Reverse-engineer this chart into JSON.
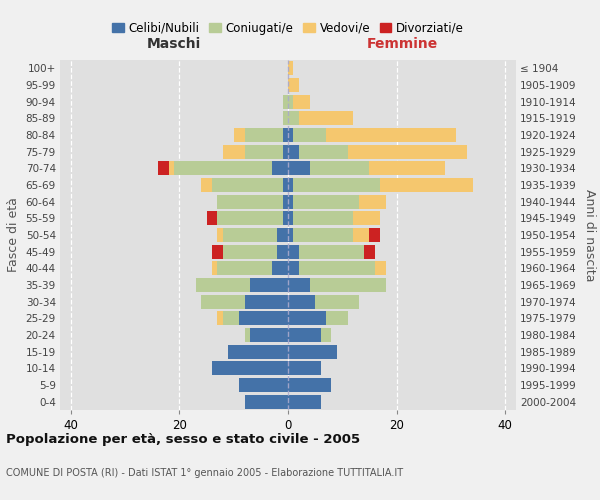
{
  "age_groups": [
    "0-4",
    "5-9",
    "10-14",
    "15-19",
    "20-24",
    "25-29",
    "30-34",
    "35-39",
    "40-44",
    "45-49",
    "50-54",
    "55-59",
    "60-64",
    "65-69",
    "70-74",
    "75-79",
    "80-84",
    "85-89",
    "90-94",
    "95-99",
    "100+"
  ],
  "birth_years": [
    "2000-2004",
    "1995-1999",
    "1990-1994",
    "1985-1989",
    "1980-1984",
    "1975-1979",
    "1970-1974",
    "1965-1969",
    "1960-1964",
    "1955-1959",
    "1950-1954",
    "1945-1949",
    "1940-1944",
    "1935-1939",
    "1930-1934",
    "1925-1929",
    "1920-1924",
    "1915-1919",
    "1910-1914",
    "1905-1909",
    "≤ 1904"
  ],
  "maschi": {
    "celibi": [
      8,
      9,
      14,
      11,
      7,
      9,
      8,
      7,
      3,
      2,
      2,
      1,
      1,
      1,
      3,
      1,
      1,
      0,
      0,
      0,
      0
    ],
    "coniugati": [
      0,
      0,
      0,
      0,
      1,
      3,
      8,
      10,
      10,
      10,
      10,
      12,
      12,
      13,
      18,
      7,
      7,
      1,
      1,
      0,
      0
    ],
    "vedovi": [
      0,
      0,
      0,
      0,
      0,
      1,
      0,
      0,
      1,
      0,
      1,
      0,
      0,
      2,
      1,
      4,
      2,
      0,
      0,
      0,
      0
    ],
    "divorziati": [
      0,
      0,
      0,
      0,
      0,
      0,
      0,
      0,
      0,
      2,
      0,
      2,
      0,
      0,
      2,
      0,
      0,
      0,
      0,
      0,
      0
    ]
  },
  "femmine": {
    "nubili": [
      6,
      8,
      6,
      9,
      6,
      7,
      5,
      4,
      2,
      2,
      1,
      1,
      1,
      1,
      4,
      2,
      1,
      0,
      0,
      0,
      0
    ],
    "coniugate": [
      0,
      0,
      0,
      0,
      2,
      4,
      8,
      14,
      14,
      12,
      11,
      11,
      12,
      16,
      11,
      9,
      6,
      2,
      1,
      0,
      0
    ],
    "vedove": [
      0,
      0,
      0,
      0,
      0,
      0,
      0,
      0,
      2,
      0,
      3,
      5,
      5,
      17,
      14,
      22,
      24,
      10,
      3,
      2,
      1
    ],
    "divorziate": [
      0,
      0,
      0,
      0,
      0,
      0,
      0,
      0,
      0,
      2,
      2,
      0,
      0,
      0,
      0,
      0,
      0,
      0,
      0,
      0,
      0
    ]
  },
  "colors": {
    "celibi": "#4472a8",
    "coniugati": "#b8cc96",
    "vedovi": "#f5c76e",
    "divorziati": "#cc2222"
  },
  "xlim": 42,
  "title": "Popolazione per età, sesso e stato civile - 2005",
  "subtitle": "COMUNE DI POSTA (RI) - Dati ISTAT 1° gennaio 2005 - Elaborazione TUTTITALIA.IT",
  "xlabel_left": "Maschi",
  "xlabel_right": "Femmine",
  "ylabel_left": "Fasce di età",
  "ylabel_right": "Anni di nascita",
  "legend_labels": [
    "Celibi/Nubili",
    "Coniugati/e",
    "Vedovi/e",
    "Divorziati/e"
  ],
  "bg_color": "#f0f0f0",
  "plot_bg": "#e0e0e0"
}
